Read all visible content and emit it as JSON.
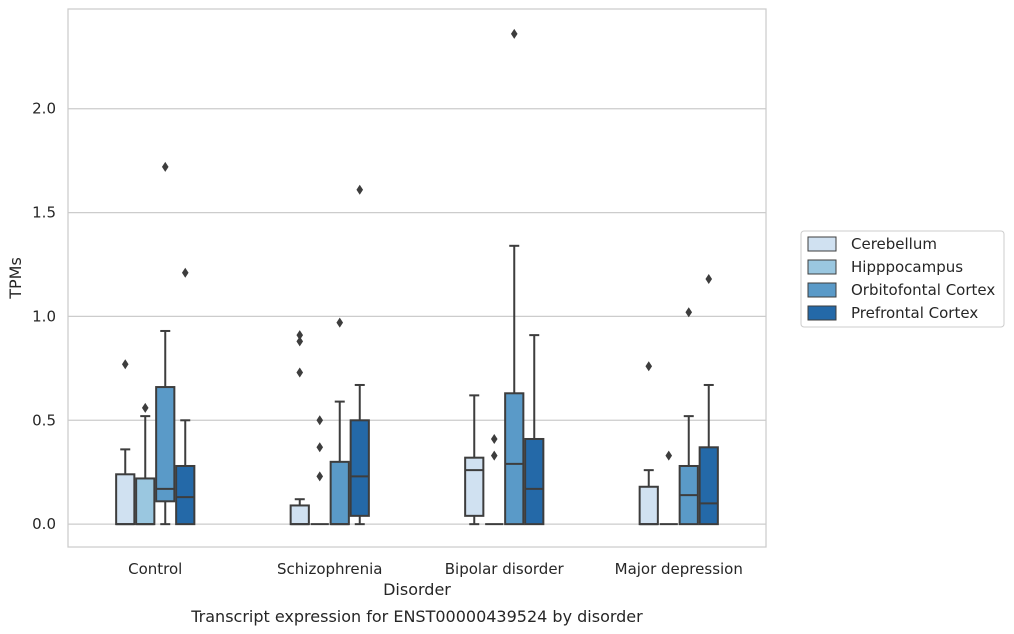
{
  "caption": "Transcript expression for ENST00000439524 by disorder",
  "chart_data": {
    "type": "box",
    "xlabel": "Disorder",
    "ylabel": "TPMs",
    "ylim": [
      -0.11,
      2.48
    ],
    "yticks": [
      0.0,
      0.5,
      1.0,
      1.5,
      2.0
    ],
    "ytick_labels": [
      "0.0",
      "0.5",
      "1.0",
      "1.5",
      "2.0"
    ],
    "grid": "horizontal",
    "legend_position": "right",
    "categories": [
      "Control",
      "Schizophrenia",
      "Bipolar disorder",
      "Major depression"
    ],
    "series": [
      {
        "name": "Cerebellum",
        "color": "#d0e1f1",
        "boxes": [
          {
            "q1": 0.0,
            "median": 0.0,
            "q3": 0.24,
            "whisker_low": 0.0,
            "whisker_high": 0.36,
            "outliers": [
              0.77
            ]
          },
          {
            "q1": 0.0,
            "median": 0.0,
            "q3": 0.09,
            "whisker_low": 0.0,
            "whisker_high": 0.12,
            "outliers": [
              0.73,
              0.88,
              0.91
            ]
          },
          {
            "q1": 0.04,
            "median": 0.26,
            "q3": 0.32,
            "whisker_low": 0.0,
            "whisker_high": 0.62,
            "outliers": []
          },
          {
            "q1": 0.0,
            "median": 0.0,
            "q3": 0.18,
            "whisker_low": 0.0,
            "whisker_high": 0.26,
            "outliers": [
              0.76
            ]
          }
        ]
      },
      {
        "name": "Hipppocampus",
        "color": "#9ac7e0",
        "boxes": [
          {
            "q1": 0.0,
            "median": 0.0,
            "q3": 0.22,
            "whisker_low": 0.0,
            "whisker_high": 0.52,
            "outliers": [
              0.56
            ]
          },
          {
            "q1": 0.0,
            "median": 0.0,
            "q3": 0.0,
            "whisker_low": 0.0,
            "whisker_high": 0.0,
            "outliers": [
              0.23,
              0.37,
              0.5
            ]
          },
          {
            "q1": 0.0,
            "median": 0.0,
            "q3": 0.0,
            "whisker_low": 0.0,
            "whisker_high": 0.0,
            "outliers": [
              0.33,
              0.41
            ]
          },
          {
            "q1": 0.0,
            "median": 0.0,
            "q3": 0.0,
            "whisker_low": 0.0,
            "whisker_high": 0.0,
            "outliers": [
              0.33
            ]
          }
        ]
      },
      {
        "name": "Orbitofontal Cortex",
        "color": "#5a9ac8",
        "boxes": [
          {
            "q1": 0.11,
            "median": 0.17,
            "q3": 0.66,
            "whisker_low": 0.0,
            "whisker_high": 0.93,
            "outliers": [
              1.72
            ]
          },
          {
            "q1": 0.0,
            "median": 0.0,
            "q3": 0.3,
            "whisker_low": 0.0,
            "whisker_high": 0.59,
            "outliers": [
              0.97
            ]
          },
          {
            "q1": 0.0,
            "median": 0.29,
            "q3": 0.63,
            "whisker_low": 0.0,
            "whisker_high": 1.34,
            "outliers": [
              2.36
            ]
          },
          {
            "q1": 0.0,
            "median": 0.14,
            "q3": 0.28,
            "whisker_low": 0.0,
            "whisker_high": 0.52,
            "outliers": [
              1.02
            ]
          }
        ]
      },
      {
        "name": "Prefrontal Cortex",
        "color": "#2469a8",
        "boxes": [
          {
            "q1": 0.0,
            "median": 0.13,
            "q3": 0.28,
            "whisker_low": 0.0,
            "whisker_high": 0.5,
            "outliers": [
              1.21
            ]
          },
          {
            "q1": 0.04,
            "median": 0.23,
            "q3": 0.5,
            "whisker_low": 0.0,
            "whisker_high": 0.67,
            "outliers": [
              1.61
            ]
          },
          {
            "q1": 0.0,
            "median": 0.17,
            "q3": 0.41,
            "whisker_low": 0.0,
            "whisker_high": 0.91,
            "outliers": []
          },
          {
            "q1": 0.0,
            "median": 0.1,
            "q3": 0.37,
            "whisker_low": 0.0,
            "whisker_high": 0.67,
            "outliers": [
              1.18
            ]
          }
        ]
      }
    ]
  }
}
